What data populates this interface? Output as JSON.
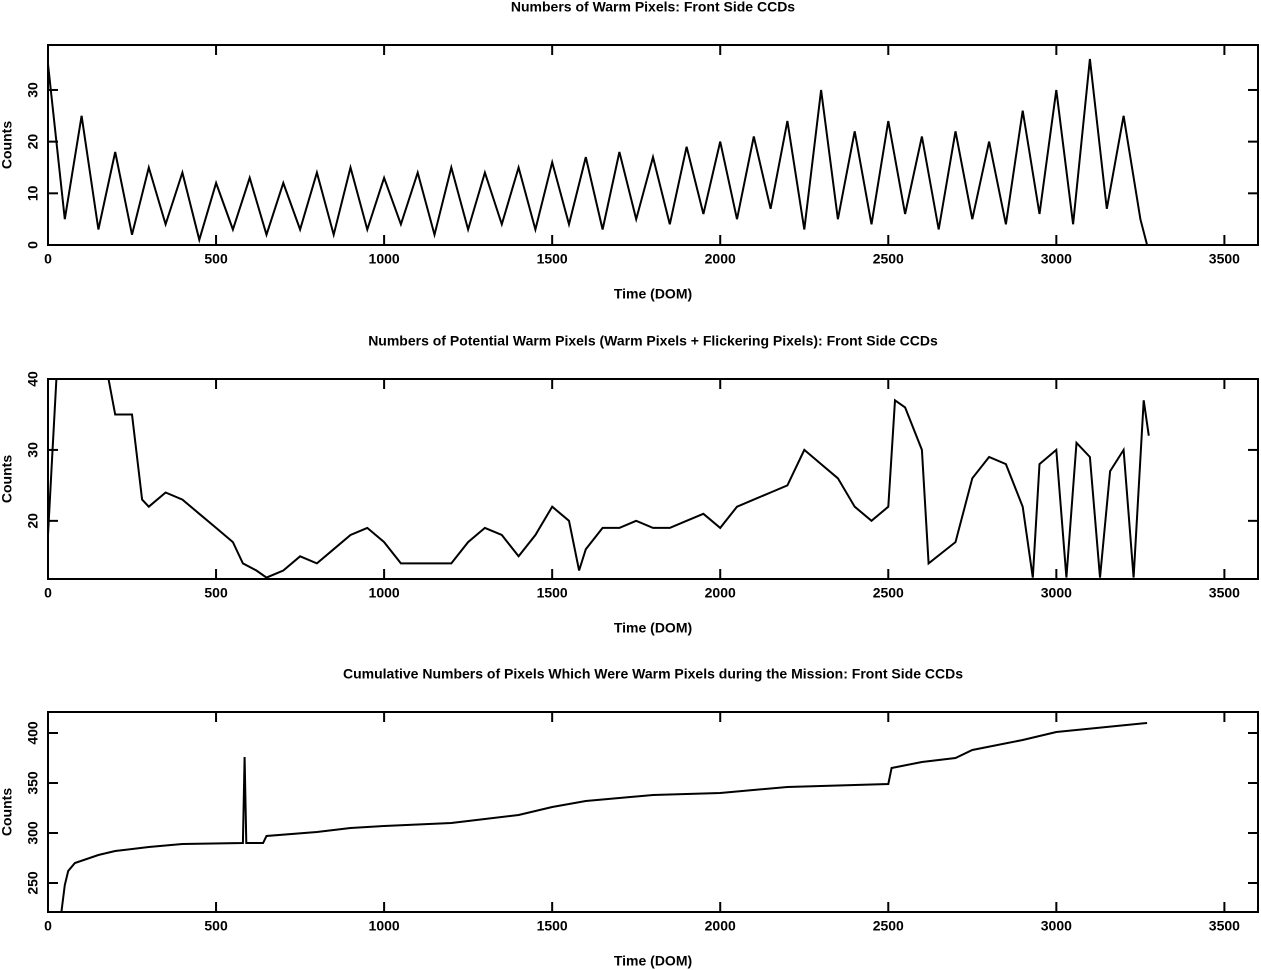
{
  "chart_data": [
    {
      "type": "line",
      "title": "Numbers of Warm Pixels: Front Side CCDs",
      "x_label": "Time (DOM)",
      "y_label": "Counts",
      "color": "#000000",
      "x": [
        0,
        50,
        100,
        150,
        200,
        250,
        300,
        350,
        400,
        450,
        500,
        550,
        600,
        650,
        700,
        750,
        800,
        850,
        900,
        950,
        1000,
        1050,
        1100,
        1150,
        1200,
        1250,
        1300,
        1350,
        1400,
        1450,
        1500,
        1550,
        1600,
        1650,
        1700,
        1750,
        1800,
        1850,
        1900,
        1950,
        2000,
        2050,
        2100,
        2150,
        2200,
        2250,
        2300,
        2350,
        2400,
        2450,
        2500,
        2550,
        2600,
        2650,
        2700,
        2750,
        2800,
        2850,
        2900,
        2950,
        3000,
        3050,
        3100,
        3150,
        3200,
        3250,
        3270,
        3600
      ],
      "values": [
        35,
        5,
        25,
        3,
        18,
        2,
        15,
        4,
        14,
        1,
        12,
        3,
        13,
        2,
        12,
        3,
        14,
        2,
        15,
        3,
        13,
        4,
        14,
        2,
        15,
        3,
        14,
        4,
        15,
        3,
        16,
        4,
        17,
        3,
        18,
        5,
        17,
        4,
        19,
        6,
        20,
        5,
        21,
        7,
        24,
        3,
        30,
        5,
        22,
        4,
        24,
        6,
        21,
        3,
        22,
        5,
        20,
        4,
        26,
        6,
        30,
        4,
        36,
        7,
        25,
        5,
        0,
        0
      ],
      "xlim": [
        0,
        3600
      ],
      "ylim": [
        0,
        38.7
      ],
      "xticks": [
        0,
        500,
        1000,
        1500,
        2000,
        2500,
        3000,
        3500
      ],
      "yticks": [
        0,
        10,
        20,
        30
      ]
    },
    {
      "type": "line",
      "title": "Numbers of Potential Warm Pixels (Warm Pixels + Flickering Pixels): Front Side CCDs",
      "x_label": "Time (DOM)",
      "y_label": "Counts",
      "color": "#000000",
      "x": [
        0,
        10,
        25,
        180,
        200,
        250,
        280,
        300,
        350,
        400,
        450,
        500,
        550,
        580,
        620,
        650,
        700,
        750,
        800,
        850,
        900,
        950,
        1000,
        1050,
        1100,
        1200,
        1250,
        1300,
        1350,
        1400,
        1450,
        1500,
        1550,
        1580,
        1600,
        1650,
        1700,
        1750,
        1800,
        1850,
        1900,
        1950,
        2000,
        2050,
        2100,
        2150,
        2200,
        2250,
        2300,
        2350,
        2400,
        2450,
        2500,
        2520,
        2550,
        2600,
        2620,
        2700,
        2750,
        2800,
        2850,
        2900,
        2930,
        2950,
        3000,
        3030,
        3060,
        3100,
        3130,
        3160,
        3200,
        3230,
        3260,
        3275
      ],
      "values": [
        18,
        27,
        40,
        40,
        35,
        35,
        23,
        22,
        24,
        23,
        21,
        19,
        17,
        14,
        13,
        12,
        13,
        15,
        14,
        16,
        18,
        19,
        17,
        14,
        14,
        14,
        17,
        19,
        18,
        15,
        18,
        22,
        20,
        13,
        16,
        19,
        19,
        20,
        19,
        19,
        20,
        21,
        19,
        22,
        23,
        24,
        25,
        30,
        28,
        26,
        22,
        20,
        22,
        37,
        36,
        30,
        14,
        17,
        26,
        29,
        28,
        22,
        12,
        28,
        30,
        12,
        31,
        29,
        12,
        27,
        30,
        12,
        37,
        32
      ],
      "xlim": [
        0,
        3600
      ],
      "ylim": [
        11.8,
        40
      ],
      "xticks": [
        0,
        500,
        1000,
        1500,
        2000,
        2500,
        3000,
        3500
      ],
      "yticks": [
        20,
        30,
        40
      ]
    },
    {
      "type": "line",
      "title": "Cumulative Numbers of Pixels Which Were Warm Pixels during the Mission: Front Side CCDs",
      "x_label": "Time (DOM)",
      "y_label": "Counts",
      "color": "#000000",
      "x": [
        40,
        50,
        60,
        80,
        150,
        200,
        300,
        400,
        580,
        585,
        590,
        640,
        650,
        800,
        900,
        1000,
        1200,
        1400,
        1500,
        1600,
        1800,
        2000,
        2200,
        2500,
        2510,
        2600,
        2700,
        2750,
        2900,
        3000,
        3270
      ],
      "values": [
        221,
        248,
        262,
        270,
        278,
        282,
        286,
        289,
        290,
        376,
        290,
        290,
        297,
        301,
        305,
        307,
        310,
        318,
        326,
        332,
        338,
        340,
        346,
        349,
        365,
        371,
        375,
        383,
        393,
        401,
        410
      ],
      "xlim": [
        0,
        3600
      ],
      "ylim": [
        221,
        421
      ],
      "xticks": [
        0,
        500,
        1000,
        1500,
        2000,
        2500,
        3000,
        3500
      ],
      "yticks": [
        250,
        300,
        350,
        400
      ]
    }
  ]
}
